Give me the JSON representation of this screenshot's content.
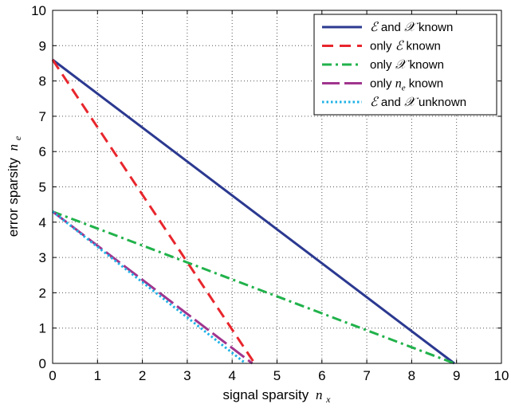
{
  "chart_data": {
    "type": "line",
    "xlabel": {
      "text": "signal sparsity",
      "symbol": "n",
      "subscript": "x"
    },
    "ylabel": {
      "text": "error sparsity",
      "symbol": "n",
      "subscript": "e"
    },
    "xlim": [
      0,
      10
    ],
    "ylim": [
      0,
      10
    ],
    "xticks": [
      0,
      1,
      2,
      3,
      4,
      5,
      6,
      7,
      8,
      9,
      10
    ],
    "yticks": [
      0,
      1,
      2,
      3,
      4,
      5,
      6,
      7,
      8,
      9,
      10
    ],
    "grid": true,
    "legend_position": "top-right",
    "series": [
      {
        "name_parts": [
          {
            "text": "ℰ",
            "style": "sym"
          },
          {
            "text": " and ",
            "style": "normal"
          },
          {
            "text": "𝒳",
            "style": "sym"
          },
          {
            "text": " known",
            "style": "normal"
          }
        ],
        "color": "#2b3990",
        "dash": "solid",
        "x": [
          0,
          8.95
        ],
        "y": [
          8.6,
          0
        ]
      },
      {
        "name_parts": [
          {
            "text": "only ",
            "style": "normal"
          },
          {
            "text": "ℰ",
            "style": "sym"
          },
          {
            "text": " known",
            "style": "normal"
          }
        ],
        "color": "#e8262d",
        "dash": "dashed",
        "x": [
          0,
          4.5
        ],
        "y": [
          8.6,
          0
        ]
      },
      {
        "name_parts": [
          {
            "text": "only ",
            "style": "normal"
          },
          {
            "text": "𝒳",
            "style": "sym"
          },
          {
            "text": " known",
            "style": "normal"
          }
        ],
        "color": "#21b24b",
        "dash": "dashdot",
        "x": [
          0,
          8.95
        ],
        "y": [
          4.3,
          0
        ]
      },
      {
        "name_parts": [
          {
            "text": "only ",
            "style": "normal"
          },
          {
            "text": "n",
            "style": "sym"
          },
          {
            "text": "e",
            "style": "sub"
          },
          {
            "text": " known",
            "style": "normal"
          }
        ],
        "color": "#a0358e",
        "dash": "longdash",
        "x": [
          0,
          4.45
        ],
        "y": [
          4.3,
          0
        ]
      },
      {
        "name_parts": [
          {
            "text": "ℰ",
            "style": "sym"
          },
          {
            "text": " and ",
            "style": "normal"
          },
          {
            "text": "𝒳",
            "style": "sym"
          },
          {
            "text": " unknown",
            "style": "normal"
          }
        ],
        "color": "#1fb2e6",
        "dash": "dotted",
        "x": [
          0,
          4.3
        ],
        "y": [
          4.3,
          0
        ]
      }
    ]
  }
}
